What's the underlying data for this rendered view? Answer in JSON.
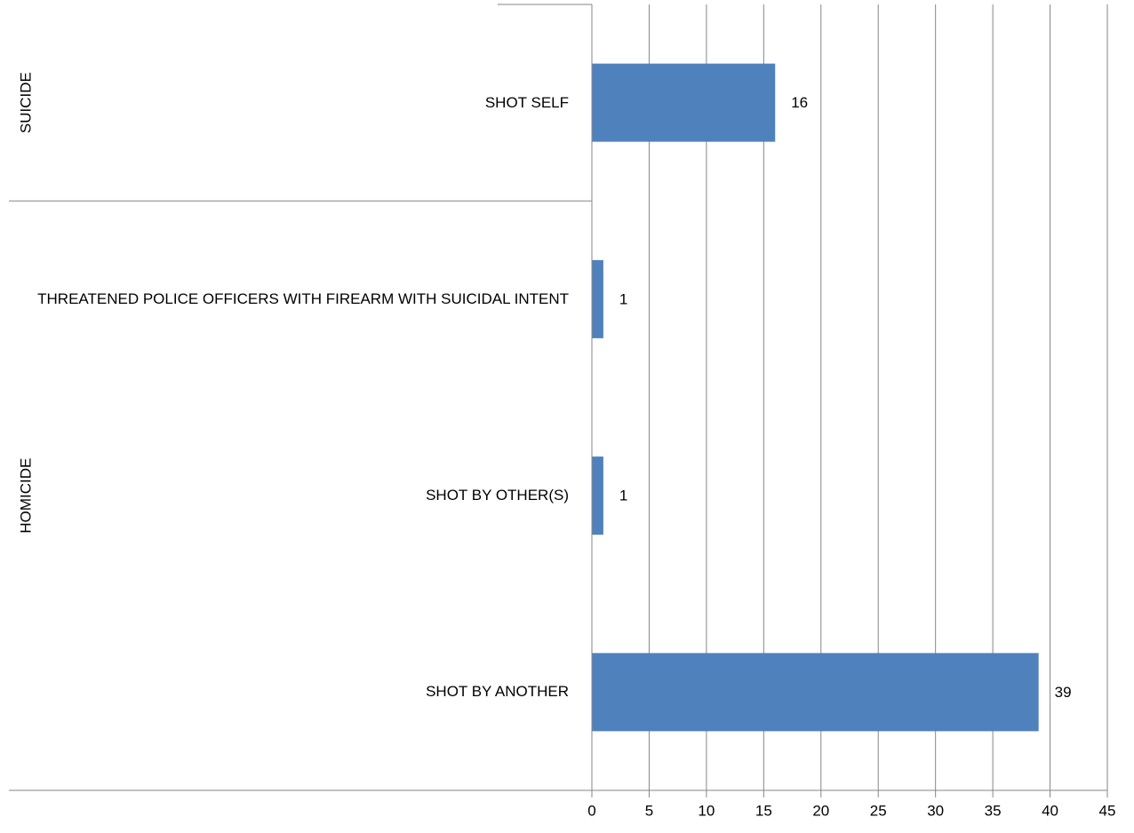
{
  "chart_data": {
    "type": "bar",
    "orientation": "horizontal",
    "color": "#4f81bd",
    "grid": true,
    "groups": [
      {
        "name": "SUICIDE",
        "categories": [
          "SHOT SELF"
        ],
        "values": [
          16
        ]
      },
      {
        "name": "HOMICIDE",
        "categories": [
          "THREATENED POLICE OFFICERS WITH FIREARM WITH SUICIDAL INTENT",
          "SHOT BY OTHER(S)",
          "SHOT BY ANOTHER"
        ],
        "values": [
          1,
          1,
          39
        ]
      }
    ],
    "xlim": [
      0,
      45
    ],
    "xticks": [
      0,
      5,
      10,
      15,
      20,
      25,
      30,
      35,
      40,
      45
    ]
  }
}
